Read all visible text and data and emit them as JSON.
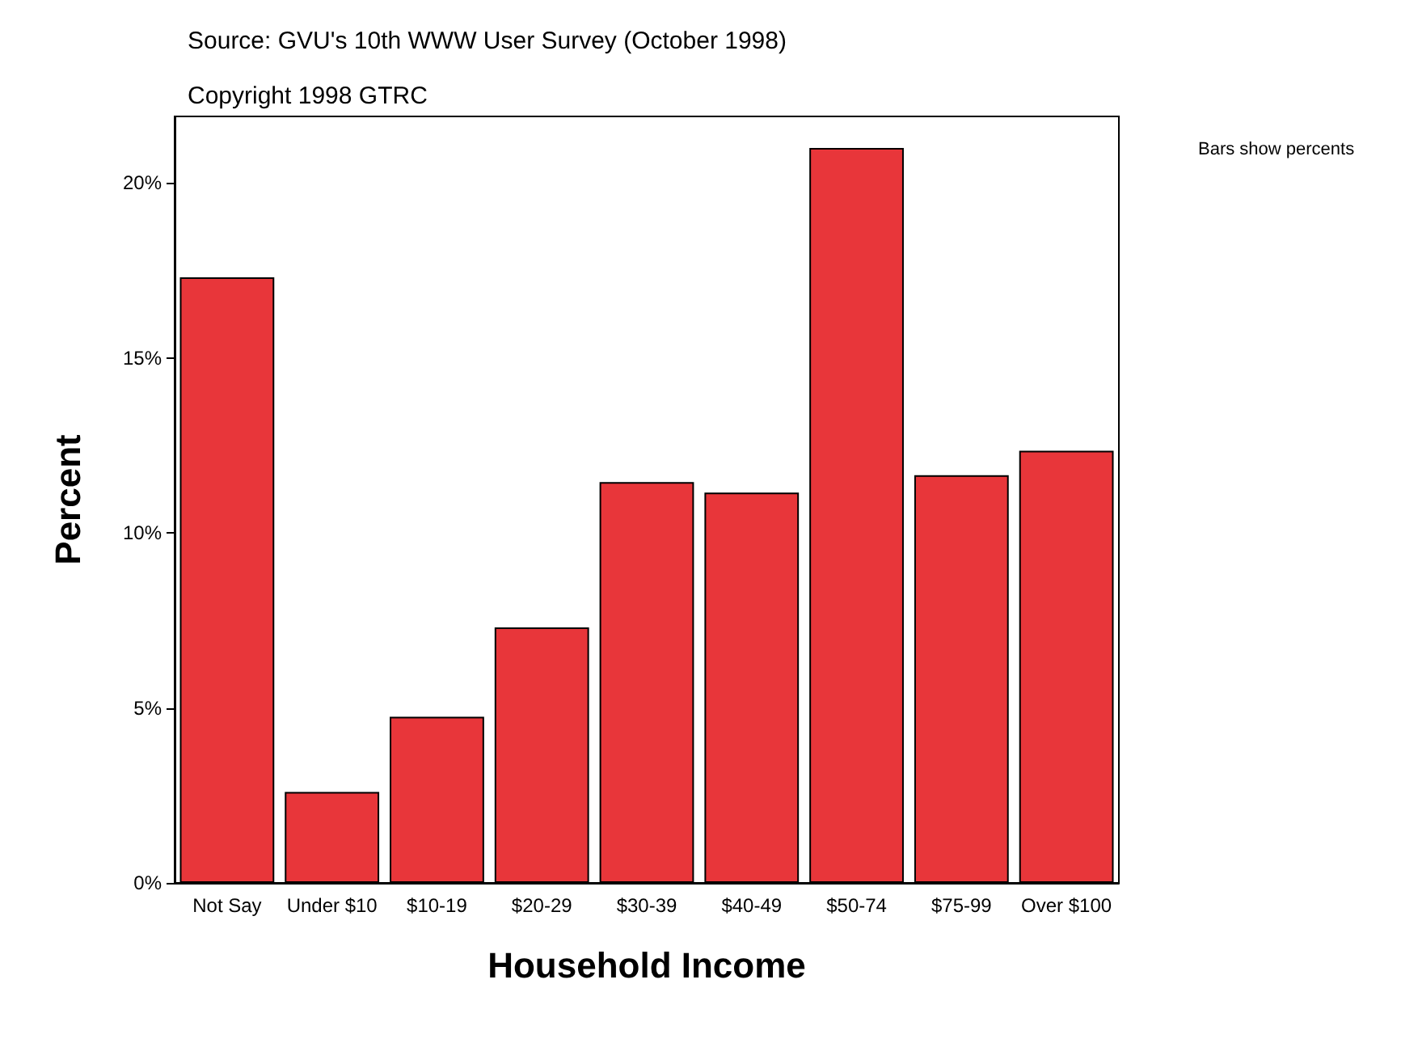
{
  "chart_data": {
    "type": "bar",
    "xlabel": "Household Income",
    "ylabel": "Percent",
    "annotations": [
      "Source: GVU's 10th WWW User Survey (October 1998)",
      "Copyright 1998 GTRC",
      "Bars show percents"
    ],
    "categories": [
      "Not Say",
      "Under $10",
      "$10-19",
      "$20-29",
      "$30-39",
      "$40-49",
      "$50-74",
      "$75-99",
      "Over $100"
    ],
    "values": [
      17.3,
      2.6,
      4.75,
      7.3,
      11.45,
      11.15,
      21.0,
      11.65,
      12.35
    ],
    "color": "#e8363a",
    "ylim": [
      0,
      21.9
    ],
    "yticks": [
      {
        "value": 0,
        "label": "0%"
      },
      {
        "value": 5,
        "label": "5%"
      },
      {
        "value": 10,
        "label": "10%"
      },
      {
        "value": 15,
        "label": "15%"
      },
      {
        "value": 20,
        "label": "20%"
      }
    ],
    "grid": false
  }
}
